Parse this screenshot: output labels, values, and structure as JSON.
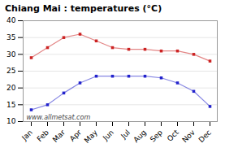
{
  "chart_data": {
    "type": "line",
    "title": "Chiang Mai : temperatures (°C)",
    "categories": [
      "Jan",
      "Feb",
      "Mar",
      "Apr",
      "May",
      "Jun",
      "Jul",
      "Aug",
      "Sep",
      "Oct",
      "Nov",
      "Dec"
    ],
    "series": [
      {
        "color": "#cc2222",
        "marker": "square",
        "values": [
          29,
          32,
          35,
          36,
          34,
          32,
          31.5,
          31.5,
          31,
          31,
          30,
          28
        ]
      },
      {
        "color": "#2222cc",
        "marker": "square",
        "values": [
          13.5,
          15,
          18.5,
          21.5,
          23.5,
          23.5,
          23.5,
          23.5,
          23,
          21.5,
          19,
          14.5
        ]
      }
    ],
    "ylim": [
      10,
      40
    ],
    "yticks": [
      10,
      15,
      20,
      25,
      30,
      35,
      40
    ],
    "grid": true,
    "annotations": [
      "www.allmetsat.com"
    ]
  }
}
